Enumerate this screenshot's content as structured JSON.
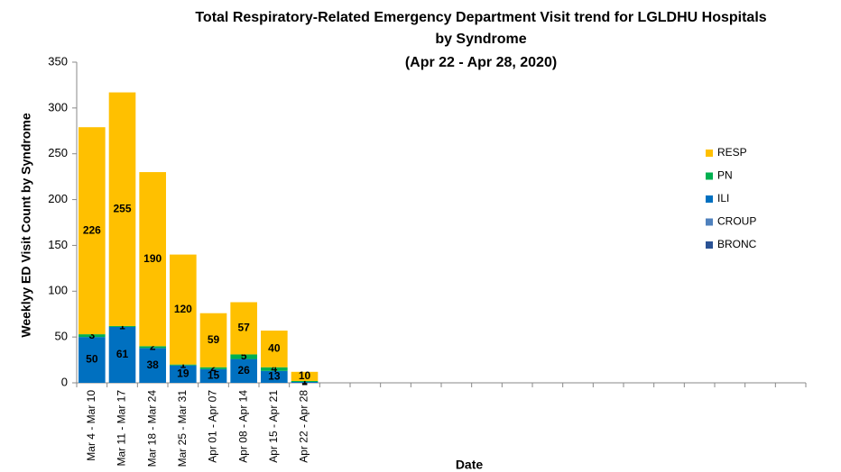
{
  "chart_data": {
    "type": "bar",
    "stacked": true,
    "title": [
      "Total Respiratory-Related Emergency Department Visit trend for LGLDHU Hospitals",
      "by Syndrome",
      "(Apr 22 - Apr 28, 2020)"
    ],
    "x_label": "Date",
    "y_label": "Weeklyy ED Visit Count by Syndrome",
    "categories": [
      "Mar 4 - Mar 10",
      "Mar 11 - Mar 17",
      "Mar 18 - Mar 24",
      "Mar 25 - Mar 31",
      "Apr 01 - Apr 07",
      "Apr 08 - Apr 14",
      "Apr 15 - Apr 21",
      "Apr 22 - Apr 28",
      null,
      null,
      null,
      null,
      null,
      null,
      null,
      null,
      null,
      null,
      null,
      null,
      null,
      null,
      null,
      null
    ],
    "series": [
      {
        "name": "BRONC",
        "color": "#2a5294",
        "values": [
          0,
          0,
          0,
          0,
          0,
          0,
          0,
          0,
          null,
          null,
          null,
          null,
          null,
          null,
          null,
          null,
          null,
          null,
          null,
          null,
          null,
          null,
          null,
          null
        ]
      },
      {
        "name": "CROUP",
        "color": "#4f81bd",
        "values": [
          0,
          0,
          0,
          0,
          0,
          0,
          0,
          0,
          null,
          null,
          null,
          null,
          null,
          null,
          null,
          null,
          null,
          null,
          null,
          null,
          null,
          null,
          null,
          null
        ]
      },
      {
        "name": "ILI",
        "color": "#0070c0",
        "values": [
          50,
          61,
          38,
          19,
          15,
          26,
          13,
          1,
          null,
          null,
          null,
          null,
          null,
          null,
          null,
          null,
          null,
          null,
          null,
          null,
          null,
          null,
          null,
          null
        ]
      },
      {
        "name": "PN",
        "color": "#00b050",
        "values": [
          3,
          1,
          2,
          1,
          2,
          5,
          4,
          1,
          null,
          null,
          null,
          null,
          null,
          null,
          null,
          null,
          null,
          null,
          null,
          null,
          null,
          null,
          null,
          null
        ]
      },
      {
        "name": "RESP",
        "color": "#ffc000",
        "values": [
          226,
          255,
          190,
          120,
          59,
          57,
          40,
          10,
          null,
          null,
          null,
          null,
          null,
          null,
          null,
          null,
          null,
          null,
          null,
          null,
          null,
          null,
          null,
          null
        ]
      }
    ],
    "ylim": [
      0,
      350
    ],
    "yticks": [
      0,
      50,
      100,
      150,
      200,
      250,
      300,
      350
    ],
    "grid": false,
    "legend": "right"
  }
}
